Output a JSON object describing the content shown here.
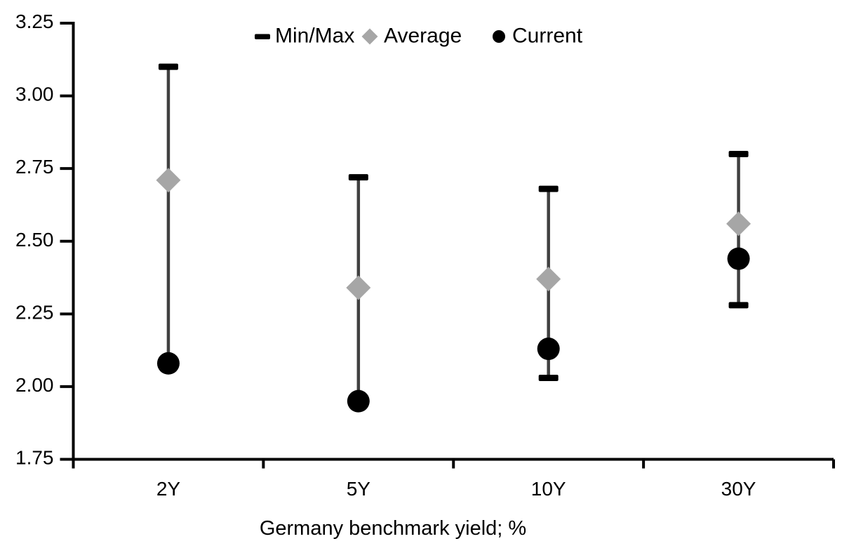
{
  "chart_data": {
    "type": "errorbar",
    "title": "",
    "xlabel": "Germany benchmark yield; %",
    "ylabel": "",
    "categories": [
      "2Y",
      "5Y",
      "10Y",
      "30Y"
    ],
    "series": [
      {
        "name": "Min/Max",
        "role": "range",
        "marker": "dash",
        "color": "#000000",
        "whisker_color": "#404040",
        "min": [
          2.08,
          1.95,
          2.03,
          2.28
        ],
        "max": [
          3.1,
          2.72,
          2.68,
          2.8
        ]
      },
      {
        "name": "Average",
        "role": "points",
        "marker": "diamond",
        "color": "#a6a6a6",
        "values": [
          2.71,
          2.34,
          2.37,
          2.56
        ]
      },
      {
        "name": "Current",
        "role": "points",
        "marker": "circle",
        "color": "#000000",
        "values": [
          2.08,
          1.95,
          2.13,
          2.44
        ]
      }
    ],
    "ylim": [
      1.75,
      3.25
    ],
    "yticks": [
      {
        "value": 1.75,
        "label": "1.75"
      },
      {
        "value": 2.0,
        "label": "2.00"
      },
      {
        "value": 2.25,
        "label": "2.25"
      },
      {
        "value": 2.5,
        "label": "2.50"
      },
      {
        "value": 2.75,
        "label": "2.75"
      },
      {
        "value": 3.0,
        "label": "3.00"
      },
      {
        "value": 3.25,
        "label": "3.25"
      }
    ],
    "grid": false,
    "legend_position": "top",
    "axis_color": "#000000",
    "text_color": "#000000",
    "background": "#ffffff"
  }
}
